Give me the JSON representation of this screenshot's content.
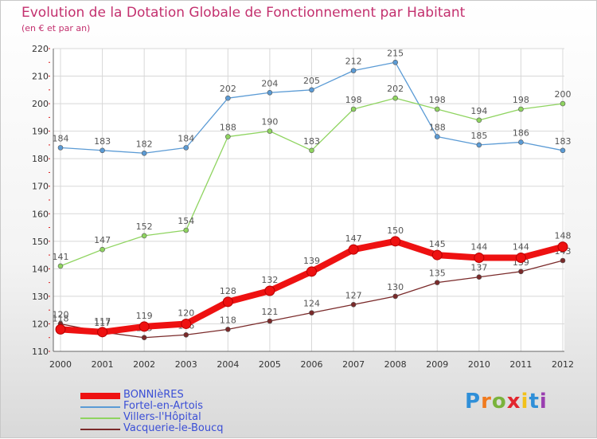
{
  "title": "Evolution de la Dotation Globale de Fonctionnement par Habitant",
  "subtitle": "(en € et par an)",
  "logo": {
    "text": "Proxiti",
    "letter_colors": [
      "#2f8fd8",
      "#f07a1e",
      "#7ab33c",
      "#e2262e",
      "#f2c119",
      "#2f8fd8",
      "#9a3fb0"
    ]
  },
  "chart_data": {
    "type": "line",
    "x": [
      2000,
      2001,
      2002,
      2003,
      2004,
      2005,
      2006,
      2007,
      2008,
      2009,
      2010,
      2011,
      2012
    ],
    "ylim": [
      110,
      220
    ],
    "yticks": [
      110,
      120,
      130,
      140,
      150,
      160,
      170,
      180,
      190,
      200,
      210,
      220
    ],
    "grid": true,
    "legend_position": "bottom-left",
    "series": [
      {
        "name": "Fortel-en-Artois",
        "color": "#5b9bd5",
        "values": [
          184,
          183,
          182,
          184,
          202,
          204,
          205,
          212,
          215,
          188,
          185,
          186,
          183
        ]
      },
      {
        "name": "Villers-l'Hôpital",
        "color": "#8fd460",
        "values": [
          141,
          147,
          152,
          154,
          188,
          190,
          183,
          198,
          202,
          198,
          194,
          198,
          200
        ]
      },
      {
        "name": "Vacquerie-le-Boucq",
        "color": "#7a2a2a",
        "values": [
          120,
          117,
          115,
          116,
          118,
          121,
          124,
          127,
          130,
          135,
          137,
          139,
          143
        ]
      },
      {
        "name": "BONNIèRES",
        "color": "#ee1111",
        "values": [
          118,
          117,
          119,
          120,
          128,
          132,
          139,
          147,
          150,
          145,
          144,
          144,
          148
        ]
      }
    ],
    "legend_order": [
      "BONNIèRES",
      "Fortel-en-Artois",
      "Villers-l'Hôpital",
      "Vacquerie-le-Boucq"
    ]
  }
}
